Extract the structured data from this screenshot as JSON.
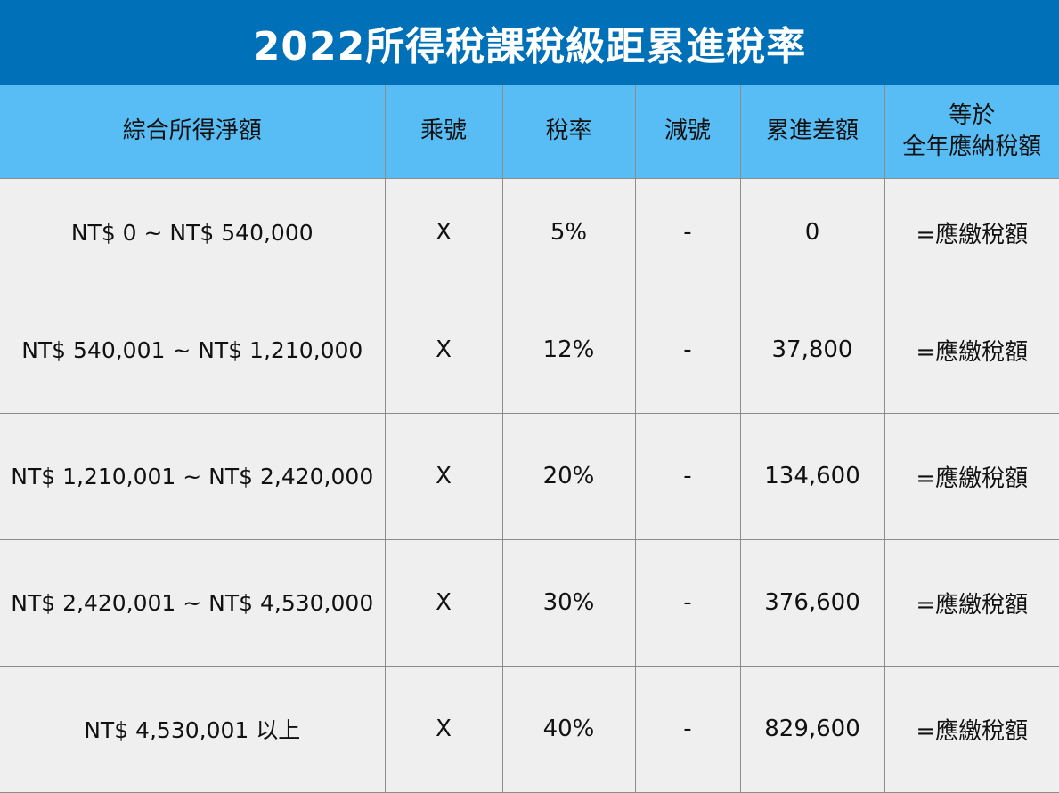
{
  "title": "2022所得稅課稅級距累進稅率",
  "headers": {
    "income": "綜合所得淨額",
    "multiply": "乘號",
    "rate": "稅率",
    "minus": "減號",
    "deduction": "累進差額",
    "equals_line1": "等於",
    "equals_line2": "全年應納稅額"
  },
  "rows": [
    {
      "range": "NT$ 0 ~ NT$ 540,000",
      "multiply": "X",
      "rate": "5%",
      "minus": "-",
      "deduction": "0",
      "equals": "=應繳稅額"
    },
    {
      "range": "NT$ 540,001 ~ NT$ 1,210,000",
      "multiply": "X",
      "rate": "12%",
      "minus": "-",
      "deduction": "37,800",
      "equals": "=應繳稅額"
    },
    {
      "range": "NT$ 1,210,001 ~ NT$ 2,420,000",
      "multiply": "X",
      "rate": "20%",
      "minus": "-",
      "deduction": "134,600",
      "equals": "=應繳稅額"
    },
    {
      "range": "NT$ 2,420,001 ~ NT$ 4,530,000",
      "multiply": "X",
      "rate": "30%",
      "minus": "-",
      "deduction": "376,600",
      "equals": "=應繳稅額"
    },
    {
      "range": "NT$ 4,530,001 以上",
      "multiply": "X",
      "rate": "40%",
      "minus": "-",
      "deduction": "829,600",
      "equals": "=應繳稅額"
    }
  ],
  "colors": {
    "title_bg": "#0070b8",
    "header_bg": "#58bdf5",
    "cell_bg": "#efefef",
    "border": "#8c8c8c"
  }
}
